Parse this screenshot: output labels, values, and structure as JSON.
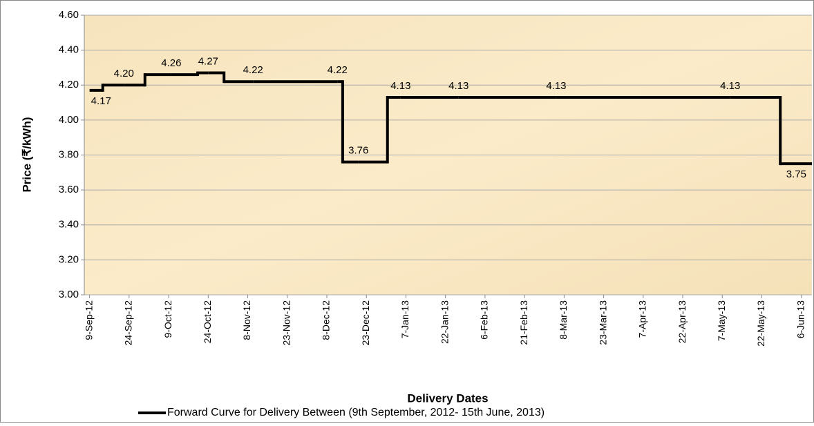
{
  "chart_data": {
    "type": "step-line",
    "x_axis_title": "Delivery Dates",
    "y_axis_title": "Price (₹/kWh)",
    "xlim": [
      "2012-09-07",
      "2013-06-10"
    ],
    "xticks": [
      {
        "value": "2012-09-09",
        "label": "9-Sep-12"
      },
      {
        "value": "2012-09-24",
        "label": "24-Sep-12"
      },
      {
        "value": "2012-10-09",
        "label": "9-Oct-12"
      },
      {
        "value": "2012-10-24",
        "label": "24-Oct-12"
      },
      {
        "value": "2012-11-08",
        "label": "8-Nov-12"
      },
      {
        "value": "2012-11-23",
        "label": "23-Nov-12"
      },
      {
        "value": "2012-12-08",
        "label": "8-Dec-12"
      },
      {
        "value": "2012-12-23",
        "label": "23-Dec-12"
      },
      {
        "value": "2013-01-07",
        "label": "7-Jan-13"
      },
      {
        "value": "2013-01-22",
        "label": "22-Jan-13"
      },
      {
        "value": "2013-02-06",
        "label": "6-Feb-13"
      },
      {
        "value": "2013-02-21",
        "label": "21-Feb-13"
      },
      {
        "value": "2013-03-08",
        "label": "8-Mar-13"
      },
      {
        "value": "2013-03-23",
        "label": "23-Mar-13"
      },
      {
        "value": "2013-04-07",
        "label": "7-Apr-13"
      },
      {
        "value": "2013-04-22",
        "label": "22-Apr-13"
      },
      {
        "value": "2013-05-07",
        "label": "7-May-13"
      },
      {
        "value": "2013-05-22",
        "label": "22-May-13"
      },
      {
        "value": "2013-06-06",
        "label": "6-Jun-13"
      }
    ],
    "ylim": [
      3.0,
      4.6
    ],
    "yticks": [
      {
        "value": 3.0,
        "label": "3.00"
      },
      {
        "value": 3.2,
        "label": "3.20"
      },
      {
        "value": 3.4,
        "label": "3.40"
      },
      {
        "value": 3.6,
        "label": "3.60"
      },
      {
        "value": 3.8,
        "label": "3.80"
      },
      {
        "value": 4.0,
        "label": "4.00"
      },
      {
        "value": 4.2,
        "label": "4.20"
      },
      {
        "value": 4.4,
        "label": "4.40"
      },
      {
        "value": 4.6,
        "label": "4.60"
      }
    ],
    "grid": true,
    "legend": "bottom",
    "series": [
      {
        "name": "Forward Curve for Delivery Between (9th September, 2012- 15th  June, 2013)",
        "color": "#000000",
        "x": [
          "2012-09-09",
          "2012-09-14",
          "2012-09-22",
          "2012-09-30",
          "2012-10-10",
          "2012-10-20",
          "2012-10-24",
          "2012-10-30",
          "2012-11-10",
          "2012-12-12",
          "2012-12-14",
          "2012-12-20",
          "2012-12-31",
          "2013-01-05",
          "2013-01-27",
          "2013-03-05",
          "2013-05-10",
          "2013-05-29",
          "2013-06-10"
        ],
        "values": [
          4.17,
          4.2,
          4.2,
          4.26,
          4.26,
          4.27,
          4.27,
          4.22,
          4.22,
          4.22,
          3.76,
          3.76,
          4.13,
          4.13,
          4.13,
          4.13,
          4.13,
          3.75,
          3.75
        ],
        "value_labels": [
          "4.17",
          null,
          "4.20",
          null,
          "4.26",
          null,
          "4.27",
          null,
          "4.22",
          "4.22",
          null,
          "3.76",
          null,
          "4.13",
          "4.13",
          "4.13",
          "4.13",
          null,
          "3.75"
        ]
      }
    ]
  }
}
